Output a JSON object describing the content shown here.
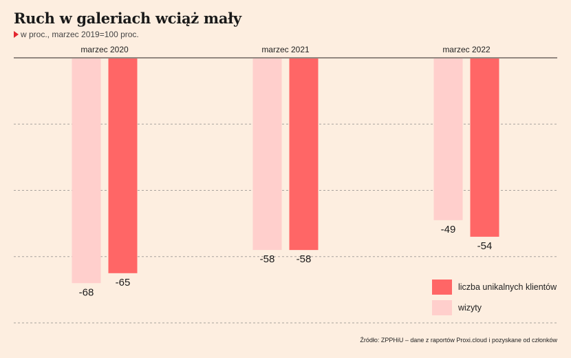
{
  "title": "Ruch w galeriach wciąż mały",
  "subtitle": "w proc., marzec 2019=100 proc.",
  "source": "Źródło: ZPPHiU – dane z raportów Proxi.cloud i pozyskane od członków",
  "chart_data": {
    "type": "bar",
    "categories": [
      "marzec 2020",
      "marzec 2021",
      "marzec 2022"
    ],
    "series": [
      {
        "name": "wizyty",
        "color": "#ffcfcc",
        "values": [
          -68,
          -58,
          -49
        ]
      },
      {
        "name": "liczba unikalnych klientów",
        "color": "#ff6666",
        "values": [
          -65,
          -58,
          -54
        ]
      }
    ],
    "ylim": [
      -80,
      0
    ],
    "grid": true,
    "legend_position": "bottom-right"
  },
  "legend": [
    {
      "label": "liczba unikalnych klientów",
      "color": "#ff6666"
    },
    {
      "label": "wizyty",
      "color": "#ffcfcc"
    }
  ]
}
